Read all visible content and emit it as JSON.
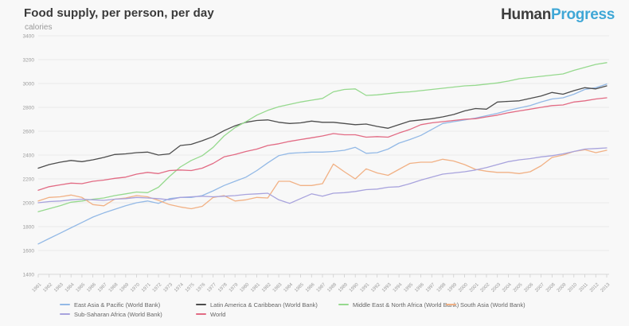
{
  "header": {
    "title": "Food supply, per person, per day",
    "subtitle": "calories",
    "logo": {
      "part1": "Human",
      "part2": "Progress",
      "part1_color": "#3d3d3d",
      "part2_color": "#3fa7d6"
    }
  },
  "chart_data": {
    "type": "line",
    "title": "Food supply, per person, per day",
    "ylabel": "calories",
    "ylim": [
      1400,
      3400
    ],
    "y_tick_step": 200,
    "y_ticks": [
      1400,
      1600,
      1800,
      2000,
      2200,
      2400,
      2600,
      2800,
      3000,
      3200,
      3400
    ],
    "grid": true,
    "legend_position": "bottom",
    "x": [
      1961,
      1962,
      1963,
      1964,
      1965,
      1966,
      1967,
      1968,
      1969,
      1970,
      1971,
      1972,
      1973,
      1974,
      1975,
      1976,
      1977,
      1978,
      1979,
      1980,
      1981,
      1982,
      1983,
      1984,
      1985,
      1986,
      1987,
      1988,
      1989,
      1990,
      1991,
      1992,
      1993,
      1994,
      1995,
      1996,
      1997,
      1998,
      1999,
      2000,
      2001,
      2002,
      2003,
      2004,
      2005,
      2006,
      2007,
      2008,
      2009,
      2010,
      2011,
      2012,
      2013
    ],
    "series": [
      {
        "name": "East Asia & Pacific (World Bank)",
        "color": "#93b9e6",
        "values": [
          1655,
          1700,
          1745,
          1790,
          1835,
          1880,
          1915,
          1945,
          1975,
          2000,
          2015,
          1995,
          2035,
          2045,
          2045,
          2060,
          2100,
          2145,
          2180,
          2215,
          2270,
          2335,
          2395,
          2415,
          2420,
          2425,
          2425,
          2430,
          2440,
          2465,
          2415,
          2420,
          2450,
          2500,
          2530,
          2565,
          2615,
          2665,
          2680,
          2695,
          2710,
          2730,
          2750,
          2775,
          2795,
          2815,
          2845,
          2870,
          2880,
          2910,
          2950,
          2965,
          2995
        ]
      },
      {
        "name": "Latin America & Caribbean (World Bank)",
        "color": "#4d4d4d",
        "values": [
          2290,
          2320,
          2340,
          2355,
          2345,
          2360,
          2380,
          2405,
          2410,
          2420,
          2425,
          2400,
          2410,
          2480,
          2490,
          2520,
          2555,
          2605,
          2645,
          2675,
          2690,
          2695,
          2675,
          2665,
          2670,
          2685,
          2675,
          2675,
          2665,
          2655,
          2660,
          2640,
          2625,
          2655,
          2685,
          2695,
          2705,
          2720,
          2740,
          2770,
          2790,
          2785,
          2845,
          2850,
          2855,
          2875,
          2895,
          2925,
          2910,
          2940,
          2965,
          2955,
          2980
        ]
      },
      {
        "name": "Middle East & North Africa (World Bank)",
        "color": "#96d98e",
        "values": [
          1925,
          1950,
          1975,
          2005,
          2015,
          2030,
          2040,
          2060,
          2075,
          2090,
          2085,
          2130,
          2220,
          2300,
          2355,
          2395,
          2465,
          2560,
          2630,
          2680,
          2735,
          2775,
          2805,
          2825,
          2845,
          2860,
          2875,
          2930,
          2950,
          2955,
          2900,
          2905,
          2915,
          2925,
          2930,
          2940,
          2950,
          2960,
          2970,
          2980,
          2985,
          2995,
          3005,
          3020,
          3040,
          3050,
          3060,
          3070,
          3080,
          3110,
          3135,
          3160,
          3175
        ]
      },
      {
        "name": "South Asia (World Bank)",
        "color": "#f1b185",
        "values": [
          2015,
          2045,
          2050,
          2065,
          2045,
          1985,
          1975,
          2030,
          2040,
          2060,
          2050,
          2020,
          1985,
          1965,
          1950,
          1970,
          2045,
          2060,
          2015,
          2025,
          2045,
          2040,
          2180,
          2180,
          2145,
          2145,
          2160,
          2325,
          2260,
          2200,
          2285,
          2250,
          2230,
          2280,
          2330,
          2340,
          2340,
          2365,
          2350,
          2320,
          2280,
          2265,
          2255,
          2255,
          2245,
          2260,
          2310,
          2380,
          2400,
          2430,
          2445,
          2420,
          2440
        ]
      },
      {
        "name": "Sub-Saharan Africa (World Bank)",
        "color": "#a8a3dd",
        "values": [
          2000,
          2010,
          2015,
          2025,
          2030,
          2025,
          2020,
          2030,
          2035,
          2045,
          2040,
          2035,
          2025,
          2045,
          2050,
          2055,
          2050,
          2055,
          2060,
          2070,
          2075,
          2080,
          2025,
          1995,
          2035,
          2075,
          2055,
          2080,
          2085,
          2095,
          2110,
          2115,
          2130,
          2135,
          2160,
          2190,
          2215,
          2240,
          2250,
          2260,
          2275,
          2295,
          2320,
          2345,
          2360,
          2370,
          2385,
          2395,
          2410,
          2430,
          2450,
          2455,
          2460
        ]
      },
      {
        "name": "World",
        "color": "#e26b84",
        "values": [
          2105,
          2135,
          2150,
          2165,
          2160,
          2180,
          2190,
          2205,
          2215,
          2240,
          2255,
          2245,
          2270,
          2275,
          2270,
          2290,
          2330,
          2385,
          2405,
          2430,
          2450,
          2480,
          2495,
          2515,
          2530,
          2545,
          2560,
          2580,
          2570,
          2570,
          2550,
          2555,
          2550,
          2585,
          2615,
          2655,
          2670,
          2680,
          2690,
          2700,
          2705,
          2720,
          2735,
          2755,
          2770,
          2785,
          2800,
          2815,
          2820,
          2845,
          2855,
          2870,
          2880
        ]
      }
    ]
  }
}
